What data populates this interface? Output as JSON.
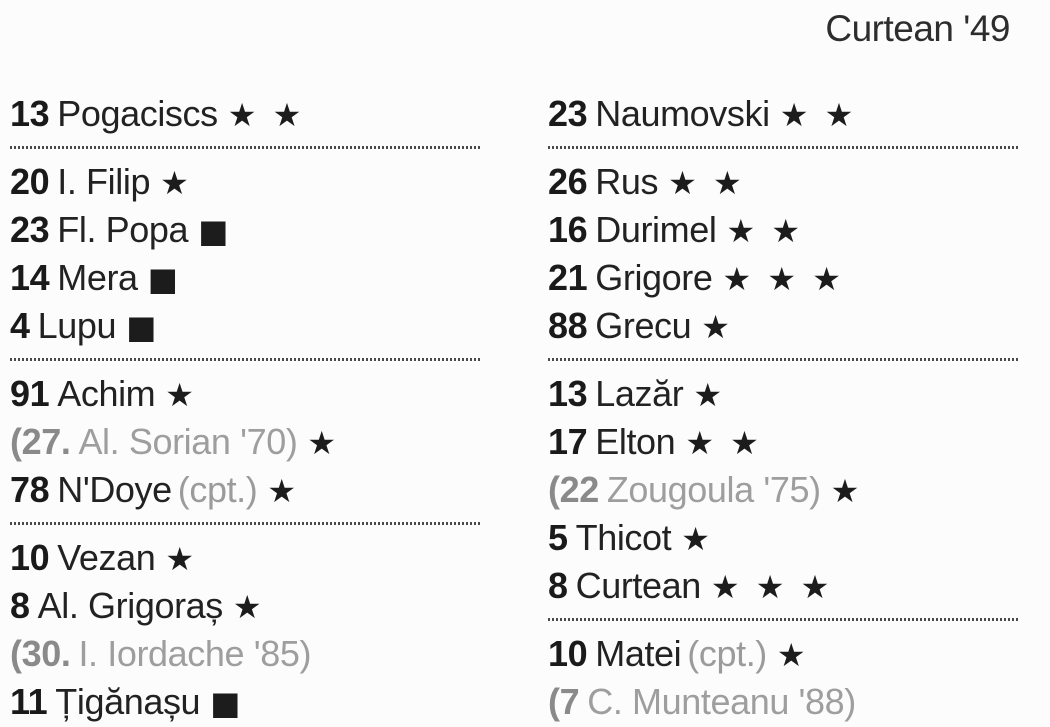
{
  "header": {
    "scorer_note": "Curtean '49"
  },
  "colors": {
    "text": "#1e1e1e",
    "muted_text": "#9e9e9e",
    "muted_number": "#8a8a8a",
    "background": "#fcfcfc"
  },
  "legend_glyphs": {
    "star": "★",
    "square": "■"
  },
  "left_column": {
    "groups": [
      {
        "players": [
          {
            "num": "13",
            "name": "Pogaciscs",
            "rating": "★ ★"
          }
        ]
      },
      {
        "players": [
          {
            "num": "20",
            "name": "I. Filip",
            "rating": "★"
          },
          {
            "num": "23",
            "name": "Fl. Popa",
            "rating": "■"
          },
          {
            "num": "14",
            "name": "Mera",
            "rating": "■"
          },
          {
            "num": "4",
            "name": "Lupu",
            "rating": "■"
          }
        ]
      },
      {
        "players": [
          {
            "num": "91",
            "name": "Achim",
            "rating": "★"
          },
          {
            "num": "(27.",
            "name": "Al. Sorian '70)",
            "rating": "★",
            "sub": true
          },
          {
            "num": "78",
            "name": "N'Doye",
            "suffix": "(cpt.)",
            "rating": "★"
          }
        ]
      },
      {
        "players": [
          {
            "num": "10",
            "name": "Vezan",
            "rating": "★"
          },
          {
            "num": "8",
            "name": "Al. Grigoraș",
            "rating": "★"
          },
          {
            "num": "(30.",
            "name": "I. Iordache '85)",
            "rating": "",
            "sub": true
          },
          {
            "num": "11",
            "name": "Țigănașu",
            "rating": "■"
          }
        ]
      }
    ]
  },
  "right_column": {
    "groups": [
      {
        "players": [
          {
            "num": "23",
            "name": "Naumovski",
            "rating": "★ ★"
          }
        ]
      },
      {
        "players": [
          {
            "num": "26",
            "name": "Rus",
            "rating": "★ ★"
          },
          {
            "num": "16",
            "name": "Durimel",
            "rating": "★ ★"
          },
          {
            "num": "21",
            "name": "Grigore",
            "rating": "★ ★ ★"
          },
          {
            "num": "88",
            "name": "Grecu",
            "rating": "★"
          }
        ]
      },
      {
        "players": [
          {
            "num": "13",
            "name": "Lazăr",
            "rating": "★"
          },
          {
            "num": "17",
            "name": "Elton",
            "rating": "★ ★"
          },
          {
            "num": "(22",
            "name": "Zougoula '75)",
            "rating": "★",
            "sub": true
          },
          {
            "num": "5",
            "name": "Thicot",
            "rating": "★"
          },
          {
            "num": "8",
            "name": "Curtean",
            "rating": "★ ★ ★"
          }
        ]
      },
      {
        "players": [
          {
            "num": "10",
            "name": "Matei",
            "suffix": "(cpt.)",
            "rating": "★"
          },
          {
            "num": "(7",
            "name": "C. Munteanu '88)",
            "rating": "",
            "sub": true
          }
        ]
      }
    ]
  }
}
